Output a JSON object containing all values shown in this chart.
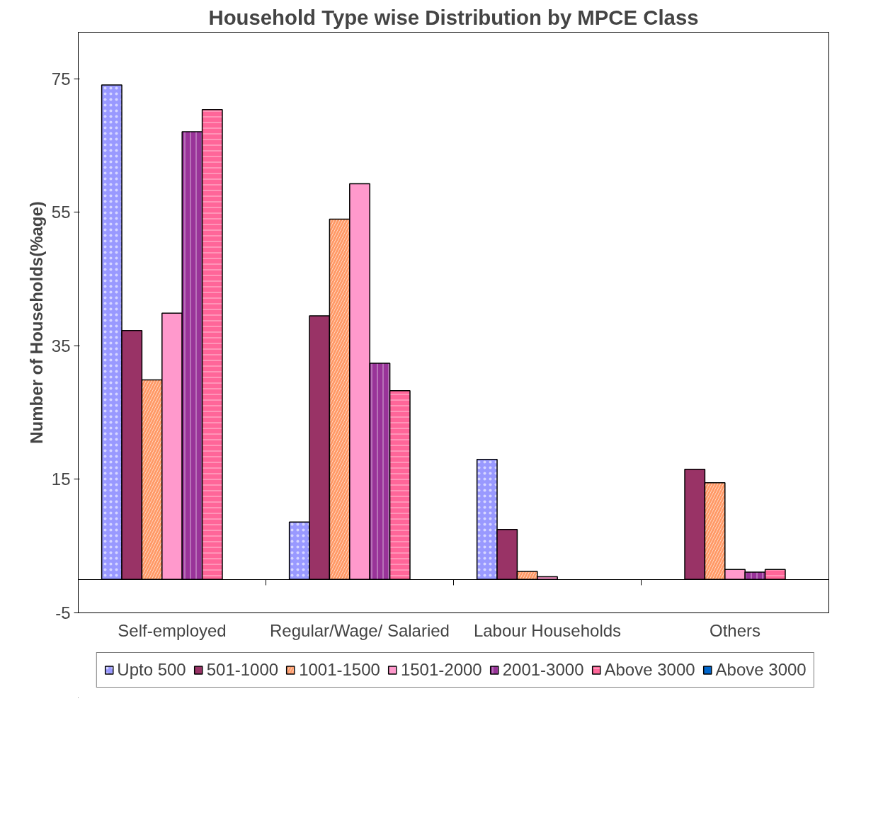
{
  "chart_data": {
    "type": "bar",
    "title": "Household Type wise Distribution by MPCE Class",
    "ylabel": "Number of Households(%age)",
    "categories": [
      "Self-employed",
      "Regular/Wage/ Salaried",
      "Labour Households",
      "Others"
    ],
    "series": [
      {
        "name": "Upto 500",
        "color": "#9999ff",
        "values": [
          74.1,
          8.6,
          18.0,
          null
        ]
      },
      {
        "name": "501-1000",
        "color": "#993366",
        "values": [
          37.3,
          39.5,
          7.5,
          16.5
        ]
      },
      {
        "name": "1001-1500",
        "color": "#ff9966",
        "values": [
          29.9,
          54.0,
          1.2,
          14.5
        ]
      },
      {
        "name": "1501-2000",
        "color": "#ff99cc",
        "values": [
          39.9,
          59.3,
          0.4,
          1.5
        ]
      },
      {
        "name": "2001-3000",
        "color": "#993399",
        "values": [
          67.1,
          32.4,
          null,
          1.1
        ]
      },
      {
        "name": "Above 3000",
        "color": "#ff6699",
        "values": [
          70.4,
          28.3,
          null,
          1.5
        ]
      },
      {
        "name": "Above 3000",
        "color": "#0066cc",
        "values": [
          null,
          null,
          null,
          null
        ]
      }
    ],
    "ylim": [
      -5,
      82
    ],
    "yticks": [
      -5,
      15,
      35,
      55,
      75
    ],
    "grid": false,
    "legend": "bottom"
  }
}
